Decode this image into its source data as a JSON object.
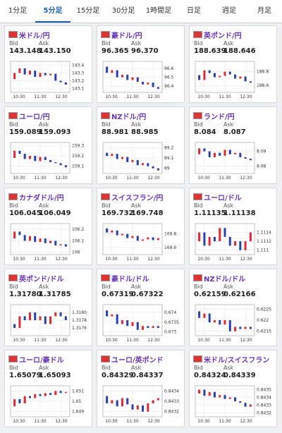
{
  "tabs": [
    "1分足",
    "5分足",
    "15分足",
    "30分足",
    "1時間足",
    "日足",
    "週足",
    "月足"
  ],
  "active_tab": 1,
  "labels": {
    "bid": "Bid",
    "ask": "Ask"
  },
  "xticks": [
    "10:30",
    "11:30",
    "12:30"
  ],
  "cards": [
    {
      "title": "米ドル/円",
      "bid": "143.148",
      "ask": "143.150",
      "ylim": [
        143.05,
        143.45
      ],
      "yticks": [
        143.1,
        143.2,
        143.3,
        143.4
      ],
      "closes": [
        143.22,
        143.3,
        143.36,
        143.28,
        143.33,
        143.25,
        143.3,
        143.27,
        143.29,
        143.2,
        143.18,
        143.15
      ]
    },
    {
      "title": "豪ドル/円",
      "bid": "96.365",
      "ask": "96.370",
      "ylim": [
        96.33,
        96.68
      ],
      "yticks": [
        96.4,
        96.5,
        96.6
      ],
      "closes": [
        96.62,
        96.55,
        96.58,
        96.5,
        96.53,
        96.47,
        96.5,
        96.45,
        96.42,
        96.44,
        96.39,
        96.37
      ]
    },
    {
      "title": "英ポンド/円",
      "bid": "188.639",
      "ask": "188.646",
      "ylim": [
        188.5,
        188.95
      ],
      "yticks": [
        188.6,
        188.8
      ],
      "closes": [
        188.75,
        188.68,
        188.82,
        188.78,
        188.72,
        188.74,
        188.8,
        188.76,
        188.7,
        188.73,
        188.66,
        188.64
      ]
    },
    {
      "title": "ユーロ/円",
      "bid": "159.089",
      "ask": "159.093",
      "ylim": [
        159.03,
        159.33
      ],
      "yticks": [
        159.1,
        159.2,
        159.3
      ],
      "closes": [
        159.18,
        159.25,
        159.22,
        159.17,
        159.2,
        159.15,
        159.19,
        159.16,
        159.14,
        159.13,
        159.11,
        159.09
      ]
    },
    {
      "title": "NZドル/円",
      "bid": "88.981",
      "ask": "88.985",
      "ylim": [
        88.95,
        89.25
      ],
      "yticks": [
        89,
        89.1,
        89.2
      ],
      "closes": [
        89.15,
        89.12,
        89.14,
        89.09,
        89.11,
        89.06,
        89.08,
        89.03,
        89.05,
        89.02,
        89,
        88.98
      ]
    },
    {
      "title": "ランド/円",
      "bid": "8.084",
      "ask": "8.087",
      "ylim": [
        8.075,
        8.096
      ],
      "yticks": [
        8.08,
        8.09
      ],
      "closes": [
        8.088,
        8.092,
        8.09,
        8.086,
        8.089,
        8.087,
        8.091,
        8.088,
        8.089,
        8.086,
        8.085,
        8.084
      ]
    },
    {
      "title": "カナダドル/円",
      "bid": "106.045",
      "ask": "106.049",
      "ylim": [
        105.98,
        106.25
      ],
      "yticks": [
        106,
        106.1,
        106.2
      ],
      "closes": [
        106.12,
        106.18,
        106.15,
        106.1,
        106.14,
        106.09,
        106.12,
        106.08,
        106.1,
        106.06,
        106.07,
        106.05
      ]
    },
    {
      "title": "スイスフラン/円",
      "bid": "169.732",
      "ask": "169.748",
      "ylim": [
        169.5,
        169.95
      ],
      "yticks": [
        169.6,
        169.8
      ],
      "closes": [
        169.88,
        169.82,
        169.85,
        169.78,
        169.8,
        169.74,
        169.77,
        169.7,
        169.72,
        169.75,
        169.71,
        169.74
      ]
    },
    {
      "title": "ユーロ/ドル",
      "bid": "1.11135",
      "ask": "1.11138",
      "ylim": [
        1.1109,
        1.1116
      ],
      "yticks": [
        1.111,
        1.1112,
        1.1114
      ],
      "closes": [
        1.1112,
        1.1114,
        1.1111,
        1.1113,
        1.1112,
        1.1115,
        1.1113,
        1.1111,
        1.1112,
        1.111,
        1.1112,
        1.1114
      ]
    },
    {
      "title": "英ポンド/ドル",
      "bid": "1.31780",
      "ask": "1.31785",
      "ylim": [
        1.3174,
        1.3182
      ],
      "yticks": [
        1.3176,
        1.3178,
        {
          "value": 1.318,
          "label": "1.3180"
        }
      ],
      "closes": [
        1.3177,
        1.3176,
        1.3179,
        1.3178,
        1.318,
        1.3178,
        1.3179,
        1.3177,
        1.3179,
        1.318,
        1.3179,
        1.3178
      ]
    },
    {
      "title": "豪ドル/ドル",
      "bid": "0.67319",
      "ask": "0.67322",
      "ylim": [
        0.6728,
        0.6744
      ],
      "yticks": [
        0.673,
        0.6735,
        0.674
      ],
      "closes": [
        0.6741,
        0.6738,
        0.6739,
        0.6734,
        0.6736,
        0.6733,
        0.6735,
        0.6731,
        0.6733,
        0.6732,
        0.6733,
        0.6732
      ]
    },
    {
      "title": "NZドル/ドル",
      "bid": "0.62159",
      "ask": "0.62166",
      "ylim": [
        0.6213,
        0.6227
      ],
      "yticks": [
        0.6215,
        0.622,
        0.6225
      ],
      "closes": [
        0.6224,
        0.6221,
        0.6223,
        0.6219,
        0.622,
        0.6218,
        0.622,
        0.6215,
        0.6217,
        0.6216,
        0.6217,
        0.6216
      ]
    },
    {
      "title": "ユーロ/豪ドル",
      "bid": "1.65079",
      "ask": "1.65093",
      "ylim": [
        1.6485,
        1.6515
      ],
      "yticks": [
        1.649,
        1.65,
        1.651
      ],
      "closes": [
        1.6495,
        1.6502,
        1.6498,
        1.6505,
        1.6503,
        1.6507,
        1.6505,
        1.6508,
        1.6506,
        1.651,
        1.6508,
        1.6509
      ]
    },
    {
      "title": "ユーロ/英ポンド",
      "bid": "0.84329",
      "ask": "0.84337",
      "ylim": [
        0.84315,
        0.84345
      ],
      "yticks": [
        0.8432,
        0.8433,
        0.8434
      ],
      "closes": [
        0.84335,
        0.84328,
        0.84331,
        0.84325,
        0.84333,
        0.84327,
        0.84322,
        0.84326,
        0.8432,
        0.84328,
        0.84331,
        0.84333
      ]
    },
    {
      "title": "米ドル/スイスフラン",
      "bid": "0.84324",
      "ask": "0.84339",
      "ylim": [
        0.84315,
        0.84355
      ],
      "yticks": [
        0.8432,
        0.8433,
        0.8434,
        0.8435
      ],
      "closes": [
        0.84345,
        0.8435,
        0.84342,
        0.84347,
        0.8434,
        0.84343,
        0.84338,
        0.8434,
        0.84335,
        0.84333,
        0.84328,
        0.84331
      ]
    }
  ]
}
